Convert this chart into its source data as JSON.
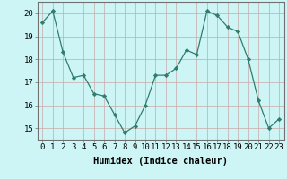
{
  "x": [
    0,
    1,
    2,
    3,
    4,
    5,
    6,
    7,
    8,
    9,
    10,
    11,
    12,
    13,
    14,
    15,
    16,
    17,
    18,
    19,
    20,
    21,
    22,
    23
  ],
  "y": [
    19.6,
    20.1,
    18.3,
    17.2,
    17.3,
    16.5,
    16.4,
    15.6,
    14.8,
    15.1,
    16.0,
    17.3,
    17.3,
    17.6,
    18.4,
    18.2,
    20.1,
    19.9,
    19.4,
    19.2,
    18.0,
    16.2,
    15.0,
    15.4
  ],
  "xlabel": "Humidex (Indice chaleur)",
  "ylim": [
    14.5,
    20.5
  ],
  "xlim": [
    -0.5,
    23.5
  ],
  "yticks": [
    15,
    16,
    17,
    18,
    19,
    20
  ],
  "xticks": [
    0,
    1,
    2,
    3,
    4,
    5,
    6,
    7,
    8,
    9,
    10,
    11,
    12,
    13,
    14,
    15,
    16,
    17,
    18,
    19,
    20,
    21,
    22,
    23
  ],
  "line_color": "#2e7d6e",
  "marker": "D",
  "marker_size": 2.2,
  "bg_color": "#cef5f5",
  "grid_color_major": "#c8a8a8",
  "grid_color_minor": "#ddc8c8",
  "xlabel_fontsize": 7.5,
  "tick_fontsize": 6.5,
  "spine_color": "#707070",
  "line_width": 0.9
}
